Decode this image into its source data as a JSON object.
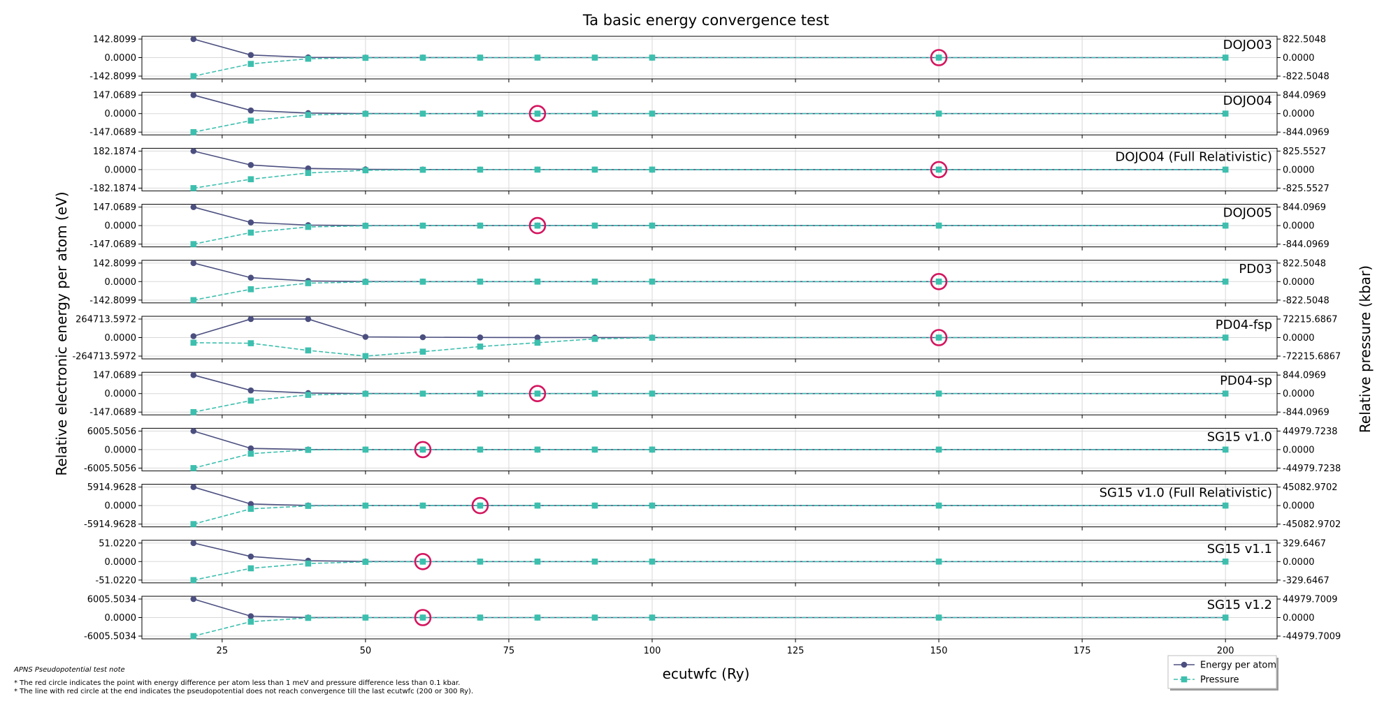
{
  "chart_data": {
    "type": "line",
    "title": "Ta basic energy convergence test",
    "xlabel": "ecutwfc (Ry)",
    "ylabel_left": "Relative electronic energy per atom (eV)",
    "ylabel_right": "Relative pressure (kbar)",
    "x": [
      20,
      30,
      40,
      50,
      60,
      70,
      80,
      90,
      100,
      150,
      200
    ],
    "xlim": [
      11,
      209
    ],
    "xticks": [
      25,
      50,
      75,
      100,
      125,
      150,
      175,
      200
    ],
    "grid": true,
    "legend": {
      "position": "bottom-right",
      "entries": [
        "Energy per atom",
        "Pressure"
      ]
    },
    "colors": {
      "energy": "#4b4f7f",
      "pressure": "#3dbfae",
      "marker_circle": "#d4155f",
      "grid": "#d8d8d8"
    },
    "series_names": {
      "energy": "Energy per atom",
      "pressure": "Pressure"
    },
    "notes": [
      "APNS Pseudopotential test note",
      "* The red circle indicates the point with energy difference per atom less than 1 meV and pressure difference less than 0.1 kbar.",
      "* The line with red circle at the end indicates the pseudopotential does not reach convergence till the last ecutwfc (200 or 300 Ry)."
    ],
    "panels": [
      {
        "label": "DOJO03",
        "left_ticks": [
          "142.8099",
          "0.0000",
          "-142.8099"
        ],
        "right_ticks": [
          "822.5048",
          "0.0000",
          "-822.5048"
        ],
        "energy_scale": 142.8099,
        "pressure_scale": 822.5048,
        "energy": [
          142.81,
          20.0,
          2.0,
          0.3,
          0.1,
          0.05,
          0.02,
          0.01,
          0.005,
          0.0,
          0.0
        ],
        "pressure": [
          -822.5,
          -280.0,
          -50.0,
          -10.0,
          -3.0,
          -1.0,
          -0.5,
          -0.2,
          -0.1,
          0.0,
          0.0
        ],
        "converged_x": 150
      },
      {
        "label": "DOJO04",
        "left_ticks": [
          "147.0689",
          "0.0000",
          "-147.0689"
        ],
        "right_ticks": [
          "844.0969",
          "0.0000",
          "-844.0969"
        ],
        "energy_scale": 147.0689,
        "pressure_scale": 844.0969,
        "energy": [
          147.07,
          25.0,
          4.0,
          0.5,
          0.1,
          0.05,
          0.02,
          0.01,
          0.005,
          0.0,
          0.0
        ],
        "pressure": [
          -844.1,
          -320.0,
          -60.0,
          -10.0,
          -3.0,
          -1.0,
          -0.5,
          -0.2,
          -0.1,
          0.0,
          0.0
        ],
        "converged_x": 80
      },
      {
        "label": "DOJO04 (Full Relativistic)",
        "left_ticks": [
          "182.1874",
          "0.0000",
          "-182.1874"
        ],
        "right_ticks": [
          "825.5527",
          "0.0000",
          "-825.5527"
        ],
        "energy_scale": 182.1874,
        "pressure_scale": 825.5527,
        "energy": [
          182.19,
          45.0,
          12.0,
          2.0,
          0.5,
          0.2,
          0.1,
          0.05,
          0.02,
          0.0,
          0.0
        ],
        "pressure": [
          -825.55,
          -430.0,
          -150.0,
          -30.0,
          -8.0,
          -3.0,
          -1.0,
          -0.5,
          -0.2,
          0.0,
          0.0
        ],
        "converged_x": 150
      },
      {
        "label": "DOJO05",
        "left_ticks": [
          "147.0689",
          "0.0000",
          "-147.0689"
        ],
        "right_ticks": [
          "844.0969",
          "0.0000",
          "-844.0969"
        ],
        "energy_scale": 147.0689,
        "pressure_scale": 844.0969,
        "energy": [
          147.07,
          25.0,
          4.0,
          0.5,
          0.1,
          0.05,
          0.02,
          0.01,
          0.005,
          0.0,
          0.0
        ],
        "pressure": [
          -844.1,
          -320.0,
          -60.0,
          -10.0,
          -3.0,
          -1.0,
          -0.5,
          -0.2,
          -0.1,
          0.0,
          0.0
        ],
        "converged_x": 80
      },
      {
        "label": "PD03",
        "left_ticks": [
          "142.8099",
          "0.0000",
          "-142.8099"
        ],
        "right_ticks": [
          "822.5048",
          "0.0000",
          "-822.5048"
        ],
        "energy_scale": 142.8099,
        "pressure_scale": 822.5048,
        "energy": [
          142.81,
          30.0,
          5.0,
          0.8,
          0.2,
          0.1,
          0.05,
          0.02,
          0.01,
          0.0,
          0.0
        ],
        "pressure": [
          -822.5,
          -340.0,
          -70.0,
          -15.0,
          -4.0,
          -1.5,
          -0.5,
          -0.2,
          -0.1,
          0.0,
          0.0
        ],
        "converged_x": 150
      },
      {
        "label": "PD04-fsp",
        "left_ticks": [
          "264713.5972",
          "0.0000",
          "-264713.5972"
        ],
        "right_ticks": [
          "72215.6867",
          "0.0000",
          "-72215.6867"
        ],
        "energy_scale": 264713.5972,
        "pressure_scale": 72215.6867,
        "energy": [
          20000,
          264713.6,
          264713.6,
          10000,
          5000,
          2000,
          1000,
          500,
          200,
          0.0,
          0.0
        ],
        "pressure": [
          -20000,
          -22000,
          -50000,
          -72215.69,
          -55000,
          -35000,
          -20000,
          -5000,
          -500,
          0.0,
          0.0
        ],
        "converged_x": 150
      },
      {
        "label": "PD04-sp",
        "left_ticks": [
          "147.0689",
          "0.0000",
          "-147.0689"
        ],
        "right_ticks": [
          "844.0969",
          "0.0000",
          "-844.0969"
        ],
        "energy_scale": 147.0689,
        "pressure_scale": 844.0969,
        "energy": [
          147.07,
          25.0,
          4.0,
          0.5,
          0.1,
          0.05,
          0.02,
          0.01,
          0.005,
          0.0,
          0.0
        ],
        "pressure": [
          -844.1,
          -320.0,
          -60.0,
          -10.0,
          -3.0,
          -1.0,
          -0.5,
          -0.2,
          -0.1,
          0.0,
          0.0
        ],
        "converged_x": 80
      },
      {
        "label": "SG15 v1.0",
        "left_ticks": [
          "6005.5056",
          "0.0000",
          "-6005.5056"
        ],
        "right_ticks": [
          "44979.7238",
          "0.0000",
          "-44979.7238"
        ],
        "energy_scale": 6005.5056,
        "pressure_scale": 44979.7238,
        "energy": [
          6005.51,
          400.0,
          20.0,
          2.0,
          0.2,
          0.1,
          0.05,
          0.02,
          0.01,
          0.0,
          0.0
        ],
        "pressure": [
          -44979.72,
          -10000.0,
          -800.0,
          -50.0,
          -5.0,
          -2.0,
          -1.0,
          -0.5,
          -0.2,
          0.0,
          0.0
        ],
        "converged_x": 60
      },
      {
        "label": "SG15 v1.0 (Full Relativistic)",
        "left_ticks": [
          "5914.9628",
          "0.0000",
          "-5914.9628"
        ],
        "right_ticks": [
          "45082.9702",
          "0.0000",
          "-45082.9702"
        ],
        "energy_scale": 5914.9628,
        "pressure_scale": 45082.9702,
        "energy": [
          5914.96,
          500.0,
          50.0,
          5.0,
          1.0,
          0.2,
          0.1,
          0.05,
          0.02,
          0.0,
          0.0
        ],
        "pressure": [
          -45082.97,
          -8000.0,
          -800.0,
          -100.0,
          -20.0,
          -5.0,
          -2.0,
          -1.0,
          -0.5,
          0.0,
          0.0
        ],
        "converged_x": 70
      },
      {
        "label": "SG15 v1.1",
        "left_ticks": [
          "51.0220",
          "0.0000",
          "-51.0220"
        ],
        "right_ticks": [
          "329.6467",
          "0.0000",
          "-329.6467"
        ],
        "energy_scale": 51.022,
        "pressure_scale": 329.6467,
        "energy": [
          51.02,
          14.0,
          2.5,
          0.3,
          0.05,
          0.02,
          0.01,
          0.005,
          0.002,
          0.0,
          0.0
        ],
        "pressure": [
          -329.65,
          -120.0,
          -35.0,
          -5.0,
          -1.0,
          -0.5,
          -0.2,
          -0.1,
          -0.05,
          0.0,
          0.0
        ],
        "converged_x": 60
      },
      {
        "label": "SG15 v1.2",
        "left_ticks": [
          "6005.5034",
          "0.0000",
          "-6005.5034"
        ],
        "right_ticks": [
          "44979.7009",
          "0.0000",
          "-44979.7009"
        ],
        "energy_scale": 6005.5034,
        "pressure_scale": 44979.7009,
        "energy": [
          6005.5,
          450.0,
          20.0,
          2.0,
          0.2,
          0.1,
          0.05,
          0.02,
          0.01,
          0.0,
          0.0
        ],
        "pressure": [
          -44979.7,
          -10000.0,
          -800.0,
          -50.0,
          -5.0,
          -2.0,
          -1.0,
          -0.5,
          -0.2,
          0.0,
          0.0
        ],
        "converged_x": 60
      }
    ]
  }
}
